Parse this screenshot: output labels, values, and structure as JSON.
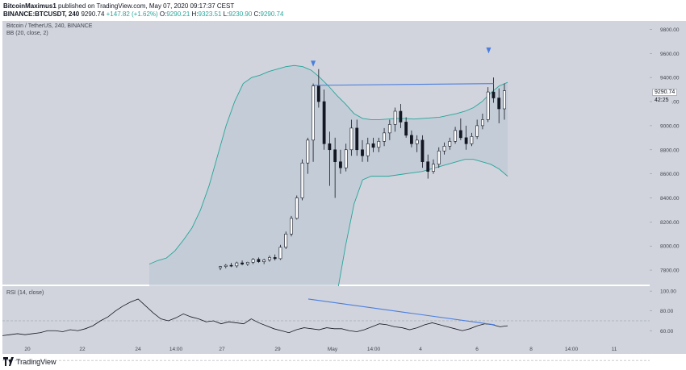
{
  "header": {
    "author": "BitcoinMaximus1",
    "published_text": "published on TradingView.com, May 07, 2020 09:17:37 CEST",
    "symbol": "BINANCE:BTCUSDT, 240",
    "last": "9290.74",
    "change": "+147.82 (+1.62%)",
    "open_label": "O:",
    "open": "9290.21",
    "high_label": "H:",
    "high": "9323.51",
    "low_label": "L:",
    "low": "9230.90",
    "close_label": "C:",
    "close": "9290.74"
  },
  "chart_title": "Bitcoin / TetherUS, 240, BINANCE",
  "bb_label": "BB (20, close, 2)",
  "rsi_label": "RSI (14, close)",
  "price_tag": "9290.74",
  "countdown_tag": "42:25",
  "footer": {
    "brand": "TradingView"
  },
  "colors": {
    "up": "#ffffff",
    "down": "#131722",
    "band": "#26a69a",
    "trend": "#4a7ee0",
    "bg": "#d1d4dc"
  },
  "chart_data": {
    "type": "candlestick",
    "y_ticks": [
      7800,
      8000,
      8200,
      8400,
      8600,
      8800,
      9000,
      9200,
      9400,
      9600,
      9800
    ],
    "ylim": [
      7680,
      9870
    ],
    "rsi_ticks": [
      60,
      80,
      100
    ],
    "rsi_ylim": [
      48,
      105
    ],
    "x_ticks": [
      "20",
      "22",
      "24",
      "14:00",
      "27",
      "29",
      "May",
      "14:00",
      "4",
      "6",
      "8",
      "14:00",
      "11"
    ],
    "candles": [
      [
        7820,
        7835,
        7800,
        7830
      ],
      [
        7830,
        7850,
        7815,
        7840
      ],
      [
        7840,
        7860,
        7825,
        7835
      ],
      [
        7835,
        7870,
        7820,
        7860
      ],
      [
        7860,
        7880,
        7840,
        7850
      ],
      [
        7850,
        7870,
        7835,
        7865
      ],
      [
        7865,
        7900,
        7850,
        7890
      ],
      [
        7890,
        7905,
        7860,
        7870
      ],
      [
        7870,
        7895,
        7850,
        7885
      ],
      [
        7885,
        7920,
        7870,
        7905
      ],
      [
        7905,
        7930,
        7880,
        7895
      ],
      [
        7895,
        8010,
        7885,
        7990
      ],
      [
        7990,
        8120,
        7975,
        8100
      ],
      [
        8100,
        8250,
        8080,
        8230
      ],
      [
        8230,
        8420,
        8220,
        8400
      ],
      [
        8400,
        8720,
        8380,
        8690
      ],
      [
        8690,
        8900,
        8600,
        8880
      ],
      [
        8880,
        9350,
        8700,
        9330
      ],
      [
        9330,
        9470,
        9150,
        9200
      ],
      [
        9200,
        9300,
        8800,
        8850
      ],
      [
        8850,
        8950,
        8500,
        8800
      ],
      [
        8800,
        8900,
        8400,
        8700
      ],
      [
        8700,
        8800,
        8600,
        8650
      ],
      [
        8650,
        8850,
        8620,
        8800
      ],
      [
        8800,
        9050,
        8750,
        8980
      ],
      [
        8980,
        9050,
        8750,
        8800
      ],
      [
        8800,
        8880,
        8700,
        8750
      ],
      [
        8750,
        8900,
        8700,
        8850
      ],
      [
        8850,
        8900,
        8780,
        8820
      ],
      [
        8820,
        8900,
        8780,
        8870
      ],
      [
        8870,
        8980,
        8830,
        8940
      ],
      [
        8940,
        9050,
        8880,
        9010
      ],
      [
        9010,
        9150,
        8950,
        9120
      ],
      [
        9120,
        9180,
        8980,
        9030
      ],
      [
        9030,
        9070,
        8900,
        8920
      ],
      [
        8920,
        8960,
        8820,
        8850
      ],
      [
        8850,
        8920,
        8780,
        8880
      ],
      [
        8880,
        8920,
        8650,
        8700
      ],
      [
        8700,
        8760,
        8560,
        8620
      ],
      [
        8620,
        8720,
        8600,
        8680
      ],
      [
        8680,
        8820,
        8650,
        8790
      ],
      [
        8790,
        8860,
        8760,
        8830
      ],
      [
        8830,
        8900,
        8800,
        8870
      ],
      [
        8870,
        8990,
        8850,
        8960
      ],
      [
        8960,
        9060,
        8880,
        8900
      ],
      [
        8900,
        9000,
        8800,
        8850
      ],
      [
        8850,
        8940,
        8830,
        8910
      ],
      [
        8910,
        9050,
        8890,
        9000
      ],
      [
        9000,
        9100,
        8970,
        9050
      ],
      [
        9050,
        9320,
        9030,
        9280
      ],
      [
        9280,
        9400,
        9190,
        9230
      ],
      [
        9230,
        9310,
        9020,
        9140
      ],
      [
        9140,
        9350,
        9050,
        9290
      ]
    ],
    "bb_upper": [
      7850,
      7880,
      7900,
      7960,
      8050,
      8150,
      8300,
      8500,
      8750,
      9000,
      9200,
      9350,
      9400,
      9420,
      9450,
      9470,
      9490,
      9500,
      9490,
      9460,
      9400,
      9330,
      9250,
      9180,
      9100,
      9060,
      9050,
      9050,
      9055,
      9060,
      9060,
      9055,
      9060,
      9065,
      9070,
      9085,
      9100,
      9120,
      9150,
      9200,
      9270,
      9330,
      9360
    ],
    "bb_lower": [
      7550,
      7550,
      7550,
      7550,
      7550,
      7550,
      7550,
      7550,
      7550,
      7550,
      7550,
      7550,
      7550,
      7550,
      7550,
      7550,
      7550,
      7550,
      7550,
      7550,
      7550,
      7550,
      7600,
      8000,
      8350,
      8550,
      8580,
      8580,
      8580,
      8590,
      8600,
      8610,
      8620,
      8640,
      8660,
      8680,
      8700,
      8720,
      8720,
      8700,
      8680,
      8640,
      8580
    ],
    "rsi": [
      55,
      56,
      57,
      56,
      57,
      58,
      60,
      60,
      59,
      61,
      60,
      62,
      65,
      70,
      74,
      80,
      85,
      89,
      92,
      85,
      78,
      72,
      70,
      73,
      77,
      74,
      72,
      69,
      70,
      67,
      69,
      68,
      67,
      72,
      68,
      65,
      62,
      60,
      58,
      61,
      63,
      62,
      61,
      63,
      62,
      62,
      60,
      59,
      61,
      64,
      67,
      66,
      64,
      63,
      61,
      63,
      66,
      68,
      66,
      64,
      62,
      60,
      62,
      65,
      67,
      66,
      64,
      65
    ]
  }
}
